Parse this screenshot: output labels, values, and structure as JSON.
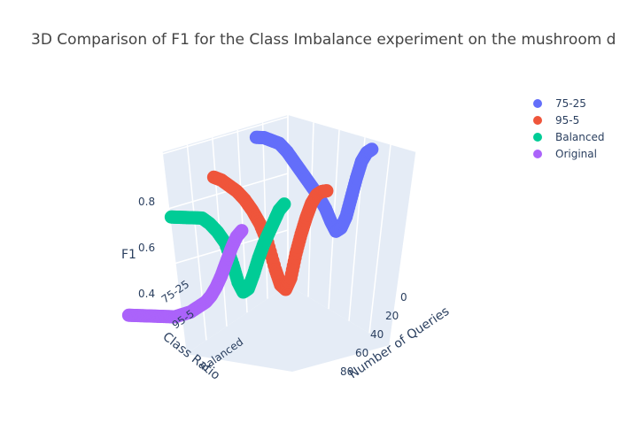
{
  "chart_data": {
    "type": "scatter3d",
    "title": "3D Comparison of F1 for the Class Imbalance experiment on the mushroom d",
    "axes": {
      "x": {
        "title": "Number of Queries",
        "ticks": [
          0,
          20,
          40,
          60,
          80
        ],
        "range": [
          0,
          90
        ]
      },
      "y": {
        "title": "Class Ratio",
        "ticks": [
          "75-25",
          "95-5",
          "Balanced"
        ]
      },
      "z": {
        "title": "F1",
        "ticks": [
          0.4,
          0.6,
          0.8
        ],
        "range": [
          0.3,
          0.9
        ]
      }
    },
    "legend_position": "top-right",
    "series": [
      {
        "name": "75-25",
        "color": "#636efa",
        "points": [
          [
            0,
            0,
            0.81
          ],
          [
            6,
            0,
            0.82
          ],
          [
            12,
            0,
            0.82
          ],
          [
            18,
            0,
            0.82
          ],
          [
            24,
            0,
            0.8
          ],
          [
            30,
            0,
            0.77
          ],
          [
            36,
            0,
            0.74
          ],
          [
            42,
            0,
            0.71
          ],
          [
            48,
            0,
            0.68
          ],
          [
            54,
            0,
            0.64
          ],
          [
            58,
            0,
            0.6
          ],
          [
            62,
            0,
            0.57
          ],
          [
            66,
            0,
            0.59
          ],
          [
            70,
            0,
            0.64
          ],
          [
            74,
            0,
            0.72
          ],
          [
            78,
            0,
            0.8
          ],
          [
            82,
            0,
            0.87
          ],
          [
            86,
            0,
            0.91
          ],
          [
            90,
            0,
            0.93
          ]
        ]
      },
      {
        "name": "95-5",
        "color": "#ef553b",
        "points": [
          [
            0,
            1,
            0.72
          ],
          [
            6,
            1,
            0.72
          ],
          [
            12,
            1,
            0.71
          ],
          [
            18,
            1,
            0.7
          ],
          [
            24,
            1,
            0.68
          ],
          [
            30,
            1,
            0.65
          ],
          [
            36,
            1,
            0.61
          ],
          [
            42,
            1,
            0.55
          ],
          [
            48,
            1,
            0.46
          ],
          [
            52,
            1,
            0.41
          ],
          [
            56,
            1,
            0.4
          ],
          [
            60,
            1,
            0.45
          ],
          [
            64,
            1,
            0.55
          ],
          [
            68,
            1,
            0.63
          ],
          [
            72,
            1,
            0.7
          ],
          [
            76,
            1,
            0.76
          ],
          [
            80,
            1,
            0.8
          ],
          [
            84,
            1,
            0.82
          ],
          [
            88,
            1,
            0.83
          ]
        ]
      },
      {
        "name": "Balanced",
        "color": "#00cc96",
        "points": [
          [
            0,
            2,
            0.63
          ],
          [
            6,
            2,
            0.64
          ],
          [
            12,
            2,
            0.65
          ],
          [
            18,
            2,
            0.66
          ],
          [
            24,
            2,
            0.67
          ],
          [
            30,
            2,
            0.66
          ],
          [
            36,
            2,
            0.64
          ],
          [
            42,
            2,
            0.61
          ],
          [
            48,
            2,
            0.54
          ],
          [
            52,
            2,
            0.48
          ],
          [
            56,
            2,
            0.45
          ],
          [
            60,
            2,
            0.47
          ],
          [
            64,
            2,
            0.53
          ],
          [
            68,
            2,
            0.6
          ],
          [
            72,
            2,
            0.66
          ],
          [
            76,
            2,
            0.71
          ],
          [
            80,
            2,
            0.76
          ],
          [
            84,
            2,
            0.81
          ],
          [
            88,
            2,
            0.84
          ]
        ]
      },
      {
        "name": "Original",
        "color": "#ab63fa",
        "points": [
          [
            0,
            3,
            0.32
          ],
          [
            6,
            3,
            0.33
          ],
          [
            12,
            3,
            0.34
          ],
          [
            18,
            3,
            0.35
          ],
          [
            24,
            3,
            0.36
          ],
          [
            30,
            3,
            0.37
          ],
          [
            36,
            3,
            0.38
          ],
          [
            42,
            3,
            0.4
          ],
          [
            48,
            3,
            0.42
          ],
          [
            54,
            3,
            0.45
          ],
          [
            60,
            3,
            0.48
          ],
          [
            64,
            3,
            0.51
          ],
          [
            68,
            3,
            0.55
          ],
          [
            72,
            3,
            0.6
          ],
          [
            76,
            3,
            0.66
          ],
          [
            80,
            3,
            0.72
          ],
          [
            84,
            3,
            0.77
          ],
          [
            88,
            3,
            0.8
          ]
        ]
      }
    ]
  }
}
